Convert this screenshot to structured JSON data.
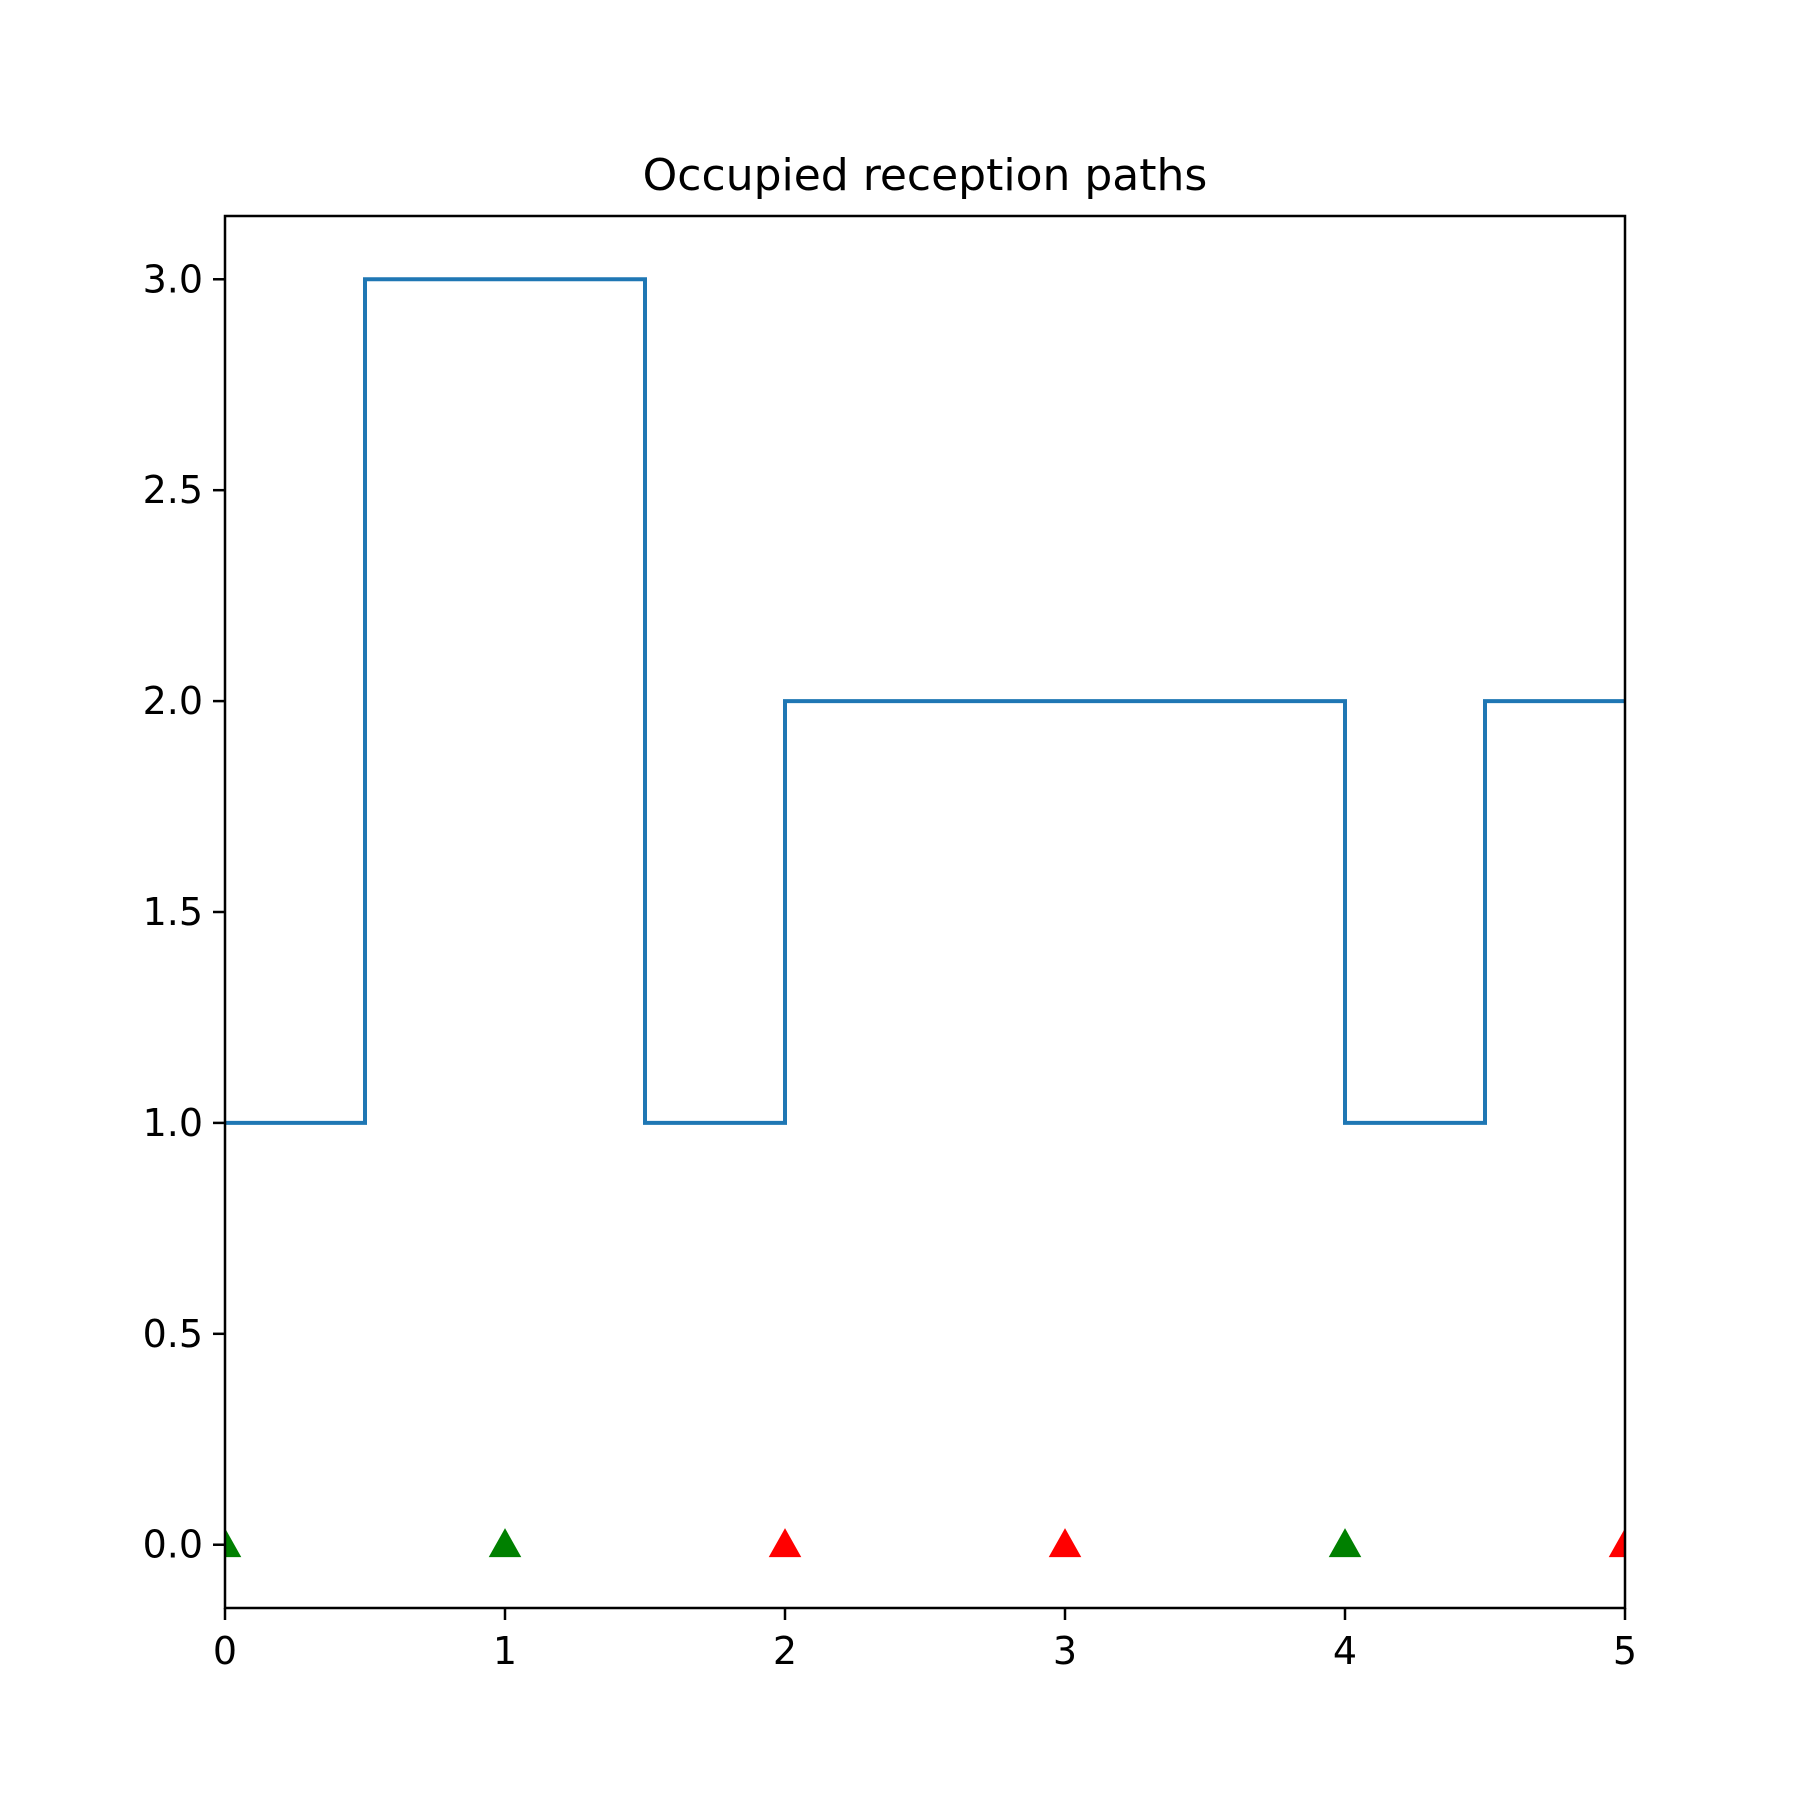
{
  "chart_data": {
    "type": "line",
    "title": "Occupied reception paths",
    "xlabel": "",
    "ylabel": "",
    "xlim": [
      0,
      5
    ],
    "ylim": [
      -0.15,
      3.15
    ],
    "x_ticks": [
      0,
      1,
      2,
      3,
      4,
      5
    ],
    "x_tick_labels": [
      "0",
      "1",
      "2",
      "3",
      "4",
      "5"
    ],
    "y_ticks": [
      0.0,
      0.5,
      1.0,
      1.5,
      2.0,
      2.5,
      3.0
    ],
    "y_tick_labels": [
      "0.0",
      "0.5",
      "1.0",
      "1.5",
      "2.0",
      "2.5",
      "3.0"
    ],
    "grid": false,
    "step_series": {
      "color": "#1f77b4",
      "points": [
        {
          "x": 0.0,
          "y": 1
        },
        {
          "x": 0.5,
          "y": 1
        },
        {
          "x": 0.5,
          "y": 3
        },
        {
          "x": 1.5,
          "y": 3
        },
        {
          "x": 1.5,
          "y": 1
        },
        {
          "x": 2.0,
          "y": 1
        },
        {
          "x": 2.0,
          "y": 2
        },
        {
          "x": 4.0,
          "y": 2
        },
        {
          "x": 4.0,
          "y": 1
        },
        {
          "x": 4.5,
          "y": 1
        },
        {
          "x": 4.5,
          "y": 2
        },
        {
          "x": 5.0,
          "y": 2
        }
      ]
    },
    "markers": [
      {
        "x": 0,
        "y": 0,
        "color": "#008000"
      },
      {
        "x": 1,
        "y": 0,
        "color": "#008000"
      },
      {
        "x": 2,
        "y": 0,
        "color": "#ff0000"
      },
      {
        "x": 3,
        "y": 0,
        "color": "#ff0000"
      },
      {
        "x": 4,
        "y": 0,
        "color": "#008000"
      },
      {
        "x": 5,
        "y": 0,
        "color": "#ff0000"
      }
    ]
  }
}
